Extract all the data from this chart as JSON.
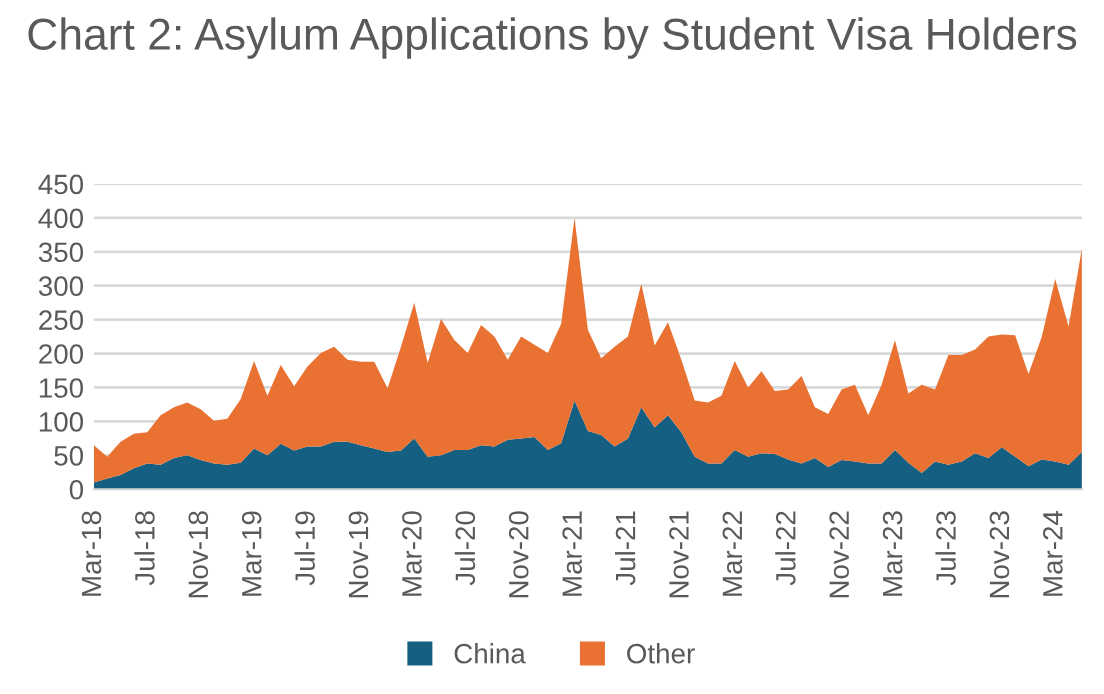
{
  "chart_data": {
    "type": "area",
    "stacked": true,
    "title": "Chart 2: Asylum Applications by Student Visa Holders",
    "categories": [
      "Mar-18",
      null,
      null,
      null,
      "Jul-18",
      null,
      null,
      null,
      "Nov-18",
      null,
      null,
      null,
      "Mar-19",
      null,
      null,
      null,
      "Jul-19",
      null,
      null,
      null,
      "Nov-19",
      null,
      null,
      null,
      "Mar-20",
      null,
      null,
      null,
      "Jul-20",
      null,
      null,
      null,
      "Nov-20",
      null,
      null,
      null,
      "Mar-21",
      null,
      null,
      null,
      "Jul-21",
      null,
      null,
      null,
      "Nov-21",
      null,
      null,
      null,
      "Mar-22",
      null,
      null,
      null,
      "Jul-22",
      null,
      null,
      null,
      "Nov-22",
      null,
      null,
      null,
      "Mar-23",
      null,
      null,
      null,
      "Jul-23",
      null,
      null,
      null,
      "Nov-23",
      null,
      null,
      null,
      "Mar-24",
      null,
      null
    ],
    "series": [
      {
        "name": "China",
        "color": "#156082",
        "values": [
          10,
          16,
          21,
          31,
          38,
          36,
          46,
          50,
          43,
          38,
          36,
          39,
          60,
          50,
          67,
          57,
          63,
          63,
          70,
          70,
          65,
          60,
          55,
          57,
          75,
          48,
          50,
          58,
          58,
          65,
          63,
          73,
          75,
          77,
          58,
          68,
          131,
          86,
          80,
          63,
          75,
          121,
          91,
          109,
          84,
          48,
          38,
          38,
          58,
          48,
          53,
          52,
          44,
          38,
          46,
          33,
          43,
          41,
          38,
          38,
          58,
          39,
          24,
          41,
          36,
          41,
          53,
          46,
          62,
          48,
          34,
          44,
          41,
          36,
          55
        ]
      },
      {
        "name": "Other",
        "color": "#e97132",
        "values": [
          55,
          32,
          49,
          51,
          46,
          73,
          75,
          78,
          75,
          63,
          68,
          94,
          129,
          88,
          116,
          95,
          118,
          138,
          140,
          121,
          123,
          128,
          94,
          153,
          200,
          138,
          201,
          162,
          143,
          177,
          162,
          118,
          150,
          136,
          143,
          176,
          269,
          149,
          113,
          147,
          150,
          182,
          121,
          137,
          107,
          83,
          90,
          100,
          131,
          102,
          121,
          93,
          103,
          129,
          75,
          78,
          104,
          113,
          71,
          116,
          162,
          102,
          130,
          106,
          162,
          157,
          153,
          179,
          166,
          179,
          136,
          181,
          269,
          204,
          300
        ]
      }
    ],
    "ylim": [
      0,
      450
    ],
    "yticks": [
      0,
      50,
      100,
      150,
      200,
      250,
      300,
      350,
      400,
      450
    ],
    "grid": "y",
    "legend": "bottom"
  }
}
